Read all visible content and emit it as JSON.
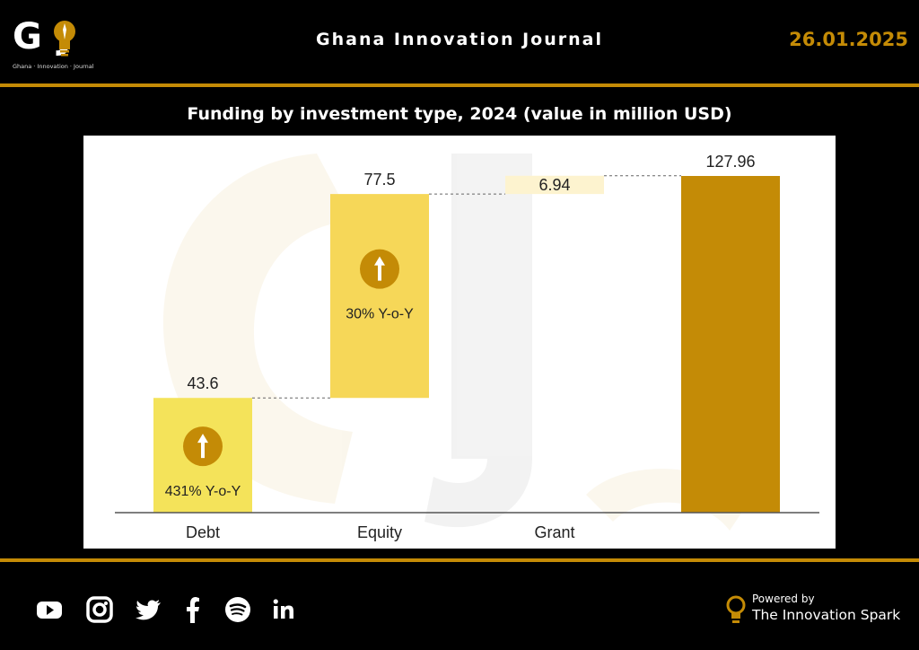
{
  "header": {
    "logo_text": "G J",
    "logo_subtitle": "Ghana · Innovation · Journal",
    "title": "Ghana Innovation Journal",
    "date": "26.01.2025"
  },
  "chart_title": "Funding by investment type, 2024 (value in million USD)",
  "chart_data": {
    "type": "bar",
    "subtype": "waterfall",
    "title": "Funding by investment type, 2024 (value in million USD)",
    "categories": [
      "Debt",
      "Equity",
      "Grant",
      ""
    ],
    "values": [
      43.6,
      77.5,
      6.94,
      127.96
    ],
    "value_labels": [
      "43.6",
      "77.5",
      "6.94",
      "127.96"
    ],
    "annotations": [
      "431% Y-o-Y",
      "30% Y-o-Y",
      "",
      ""
    ],
    "growth_arrows": [
      true,
      true,
      false,
      false
    ],
    "ylim": [
      0,
      140
    ],
    "grid": false,
    "colors": [
      "#f4e35a",
      "#f6d758",
      "#fdf3cf",
      "#c48b06"
    ]
  },
  "social_icons": [
    "youtube-icon",
    "instagram-icon",
    "twitter-icon",
    "facebook-icon",
    "spotify-icon",
    "linkedin-icon"
  ],
  "footer": {
    "powered_by": "Powered by",
    "brand": "The Innovation Spark"
  },
  "colors": {
    "accent": "#c48b06",
    "background": "#000000"
  }
}
